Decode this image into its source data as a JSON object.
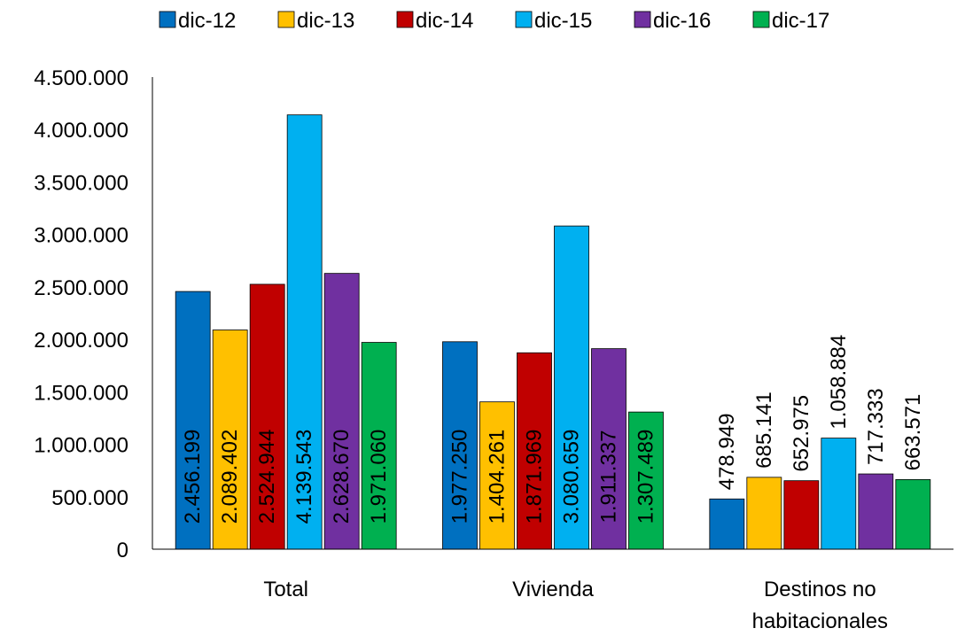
{
  "chart_data": {
    "type": "bar",
    "title": "",
    "xlabel": "",
    "ylabel": "",
    "ylim": [
      0,
      4500000
    ],
    "yticks": [
      0,
      500000,
      1000000,
      1500000,
      2000000,
      2500000,
      3000000,
      3500000,
      4000000,
      4500000
    ],
    "ytick_labels": [
      "0",
      "500.000",
      "1.000.000",
      "1.500.000",
      "2.000.000",
      "2.500.000",
      "3.000.000",
      "3.500.000",
      "4.000.000",
      "4.500.000"
    ],
    "categories": [
      "Total",
      "Vivienda",
      "Destinos no habitacionales"
    ],
    "category_lines": [
      [
        "Total"
      ],
      [
        "Vivienda"
      ],
      [
        "Destinos no",
        "habitacionales"
      ]
    ],
    "legend_position": "top",
    "grid": false,
    "series": [
      {
        "name": "dic-12",
        "color": "#0070C0",
        "values": [
          2456199,
          1977250,
          478949
        ],
        "labels": [
          "2.456.199",
          "1.977.250",
          "478.949"
        ]
      },
      {
        "name": "dic-13",
        "color": "#FFC000",
        "values": [
          2089402,
          1404261,
          685141
        ],
        "labels": [
          "2.089.402",
          "1.404.261",
          "685.141"
        ]
      },
      {
        "name": "dic-14",
        "color": "#C00000",
        "values": [
          2524944,
          1871969,
          652975
        ],
        "labels": [
          "2.524.944",
          "1.871.969",
          "652.975"
        ]
      },
      {
        "name": "dic-15",
        "color": "#00B0F0",
        "values": [
          4139543,
          3080659,
          1058884
        ],
        "labels": [
          "4.139.543",
          "3.080.659",
          "1.058.884"
        ]
      },
      {
        "name": "dic-16",
        "color": "#7030A0",
        "values": [
          2628670,
          1911337,
          717333
        ],
        "labels": [
          "2.628.670",
          "1.911.337",
          "717.333"
        ]
      },
      {
        "name": "dic-17",
        "color": "#00B050",
        "values": [
          1971060,
          1307489,
          663571
        ],
        "labels": [
          "1.971.060",
          "1.307.489",
          "663.571"
        ]
      }
    ]
  }
}
